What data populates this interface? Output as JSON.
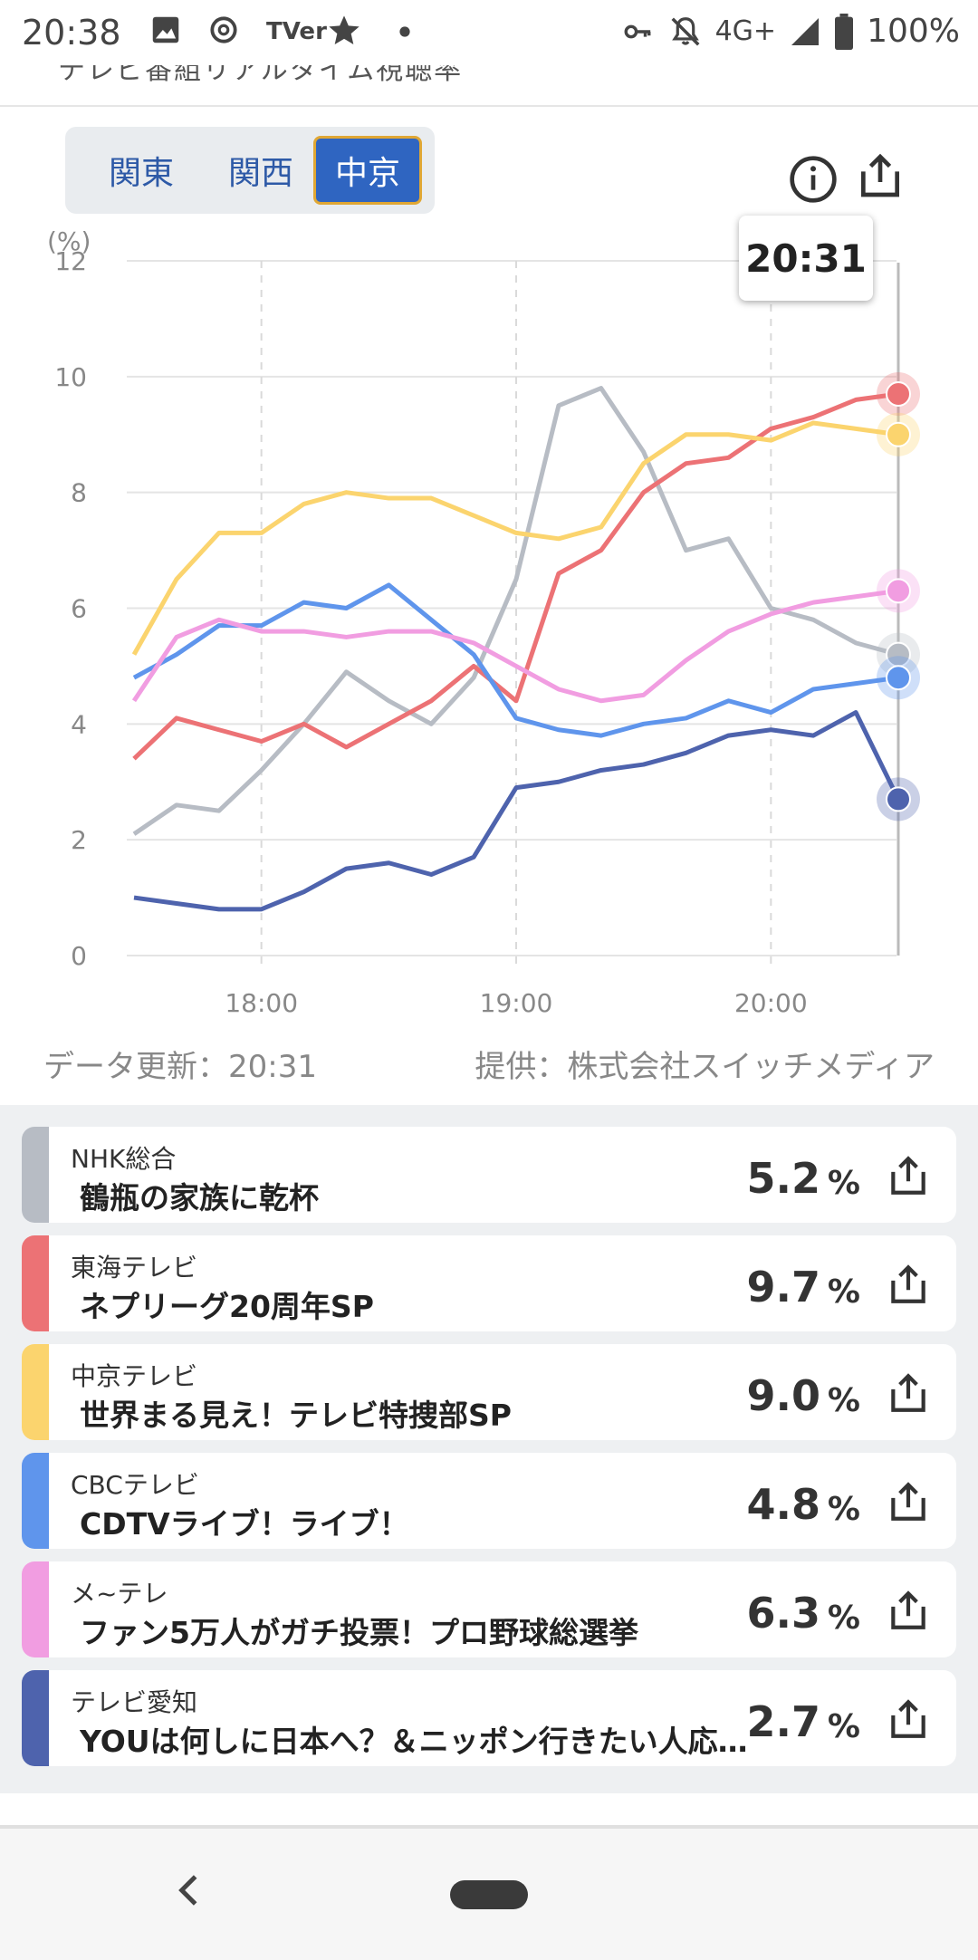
{
  "status_bar": {
    "time": "20:38",
    "icons": [
      "image-icon",
      "threads-icon",
      "tver-icon",
      "star-icon",
      "dot-icon"
    ],
    "tver_text": "TVer",
    "right_icons": [
      "key-icon",
      "bell-off-icon",
      "signal-icon",
      "battery-icon"
    ],
    "network": "4G+",
    "battery": "100%"
  },
  "header": {
    "cut_title": "テレビ番組リアルタイム視聴率"
  },
  "region_tabs": [
    {
      "label": "関東",
      "active": false
    },
    {
      "label": "関西",
      "active": false
    },
    {
      "label": "中京",
      "active": true
    }
  ],
  "actions": {
    "info_icon": "info-icon",
    "share_icon": "share-icon"
  },
  "tooltip_time": "20:31",
  "chart_data": {
    "type": "line",
    "ylabel": "(%)",
    "ylim": [
      0,
      12
    ],
    "yticks": [
      "0",
      "2",
      "4",
      "6",
      "8",
      "10",
      "12"
    ],
    "xticks": [
      "18:00",
      "19:00",
      "20:00"
    ],
    "x": [
      "17:30",
      "17:40",
      "17:50",
      "18:00",
      "18:10",
      "18:20",
      "18:30",
      "18:40",
      "18:50",
      "19:00",
      "19:10",
      "19:20",
      "19:30",
      "19:40",
      "19:50",
      "20:00",
      "20:10",
      "20:20",
      "20:31"
    ],
    "series": [
      {
        "name": "NHK総合",
        "color": "#b7bcc4",
        "values": [
          2.1,
          2.6,
          2.5,
          3.2,
          4.0,
          4.9,
          4.4,
          4.0,
          4.8,
          6.5,
          9.5,
          9.8,
          8.7,
          7.0,
          7.2,
          6.0,
          5.8,
          5.4,
          5.2
        ]
      },
      {
        "name": "東海テレビ",
        "color": "#ec7275",
        "values": [
          3.4,
          4.1,
          3.9,
          3.7,
          4.0,
          3.6,
          4.0,
          4.4,
          5.0,
          4.4,
          6.6,
          7.0,
          8.0,
          8.5,
          8.6,
          9.1,
          9.3,
          9.6,
          9.7
        ]
      },
      {
        "name": "中京テレビ",
        "color": "#fbd46e",
        "values": [
          5.2,
          6.5,
          7.3,
          7.3,
          7.8,
          8.0,
          7.9,
          7.9,
          7.6,
          7.3,
          7.2,
          7.4,
          8.5,
          9.0,
          9.0,
          8.9,
          9.2,
          9.1,
          9.0
        ]
      },
      {
        "name": "CBCテレビ",
        "color": "#5f95ec",
        "values": [
          4.8,
          5.2,
          5.7,
          5.7,
          6.1,
          6.0,
          6.4,
          5.8,
          5.2,
          4.1,
          3.9,
          3.8,
          4.0,
          4.1,
          4.4,
          4.2,
          4.6,
          4.7,
          4.8
        ]
      },
      {
        "name": "メ~テレ",
        "color": "#f19de1",
        "values": [
          4.4,
          5.5,
          5.8,
          5.6,
          5.6,
          5.5,
          5.6,
          5.6,
          5.4,
          5.0,
          4.6,
          4.4,
          4.5,
          5.1,
          5.6,
          5.9,
          6.1,
          6.2,
          6.3
        ]
      },
      {
        "name": "テレビ愛知",
        "color": "#4e63ad",
        "values": [
          1.0,
          0.9,
          0.8,
          0.8,
          1.1,
          1.5,
          1.6,
          1.4,
          1.7,
          2.9,
          3.0,
          3.2,
          3.3,
          3.5,
          3.8,
          3.9,
          3.8,
          4.2,
          2.7
        ]
      }
    ]
  },
  "data_updated": "データ更新：20:31",
  "provider": "提供：株式会社スイッチメディア",
  "list": [
    {
      "station": "NHK総合",
      "program": "鶴瓶の家族に乾杯",
      "rating": "5.2",
      "unit": "%",
      "color": "#b7bcc4"
    },
    {
      "station": "東海テレビ",
      "program": "ネプリーグ20周年SP",
      "rating": "9.7",
      "unit": "%",
      "color": "#ec7275"
    },
    {
      "station": "中京テレビ",
      "program": "世界まる見え！テレビ特捜部SP",
      "rating": "9.0",
      "unit": "%",
      "color": "#fbd46e"
    },
    {
      "station": "CBCテレビ",
      "program": "CDTVライブ！ライブ！",
      "rating": "4.8",
      "unit": "%",
      "color": "#5f95ec"
    },
    {
      "station": "メ~テレ",
      "program": "ファン5万人がガチ投票！プロ野球総選挙",
      "rating": "6.3",
      "unit": "%",
      "color": "#f19de1"
    },
    {
      "station": "テレビ愛知",
      "program": "YOUは何しに日本へ？＆ニッポン行きたい人応援団",
      "rating": "2.7",
      "unit": "%",
      "color": "#4e63ad"
    }
  ],
  "nav": {
    "back_icon": "back-icon",
    "home_icon": "home-pill-icon"
  }
}
